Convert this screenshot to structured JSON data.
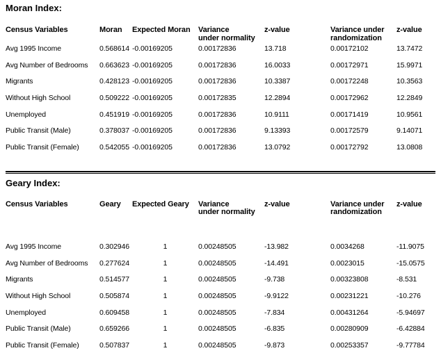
{
  "page": {
    "background_color": "#ffffff",
    "text_color": "#000000"
  },
  "moran": {
    "title": "Moran Index:",
    "headers": {
      "variable": "Census Variables",
      "index": "Moran",
      "expected": "Expected Moran",
      "variance_normality_line1": "Variance",
      "variance_normality_line2": "under normality",
      "z_normality": "z-value",
      "variance_randomization_line1": "Variance under",
      "variance_randomization_line2": "randomization",
      "z_randomization": "z-value"
    },
    "rows": [
      {
        "variable": "Avg 1995 Income",
        "index": "0.568614",
        "expected": "-0.00169205",
        "variance_normality": "0.00172836",
        "z_normality": "13.718",
        "variance_randomization": "0.00172102",
        "z_randomization": "13.7472"
      },
      {
        "variable": "Avg Number of Bedrooms",
        "index": "0.663623",
        "expected": "-0.00169205",
        "variance_normality": "0.00172836",
        "z_normality": "16.0033",
        "variance_randomization": "0.00172971",
        "z_randomization": "15.9971"
      },
      {
        "variable": "Migrants",
        "index": "0.428123",
        "expected": "-0.00169205",
        "variance_normality": "0.00172836",
        "z_normality": "10.3387",
        "variance_randomization": "0.00172248",
        "z_randomization": "10.3563"
      },
      {
        "variable": "Without High School",
        "index": "0.509222",
        "expected": "-0.00169205",
        "variance_normality": "0.00172835",
        "z_normality": "12.2894",
        "variance_randomization": "0.00172962",
        "z_randomization": "12.2849"
      },
      {
        "variable": "Unemployed",
        "index": "0.451919",
        "expected": "-0.00169205",
        "variance_normality": "0.00172836",
        "z_normality": "10.9111",
        "variance_randomization": "0.00171419",
        "z_randomization": "10.9561"
      },
      {
        "variable": "Public Transit (Male)",
        "index": "0.378037",
        "expected": "-0.00169205",
        "variance_normality": "0.00172836",
        "z_normality": "9.13393",
        "variance_randomization": "0.00172579",
        "z_randomization": "9.14071"
      },
      {
        "variable": "Public Transit (Female)",
        "index": "0.542055",
        "expected": "-0.00169205",
        "variance_normality": "0.00172836",
        "z_normality": "13.0792",
        "variance_randomization": "0.00172792",
        "z_randomization": "13.0808"
      }
    ]
  },
  "geary": {
    "title": "Geary Index:",
    "headers": {
      "variable": "Census Variables",
      "index": "Geary",
      "expected": "Expected Geary",
      "variance_normality_line1": "Variance",
      "variance_normality_line2": "under normality",
      "z_normality": "z-value",
      "variance_randomization_line1": "Variance under",
      "variance_randomization_line2": "randomization",
      "z_randomization": "z-value"
    },
    "rows": [
      {
        "variable": "Avg 1995 Income",
        "index": "0.302946",
        "expected": "1",
        "variance_normality": "0.00248505",
        "z_normality": "-13.982",
        "variance_randomization": "0.0034268",
        "z_randomization": "-11.9075"
      },
      {
        "variable": "Avg Number of Bedrooms",
        "index": "0.277624",
        "expected": "1",
        "variance_normality": "0.00248505",
        "z_normality": "-14.491",
        "variance_randomization": "0.0023015",
        "z_randomization": "-15.0575"
      },
      {
        "variable": "Migrants",
        "index": "0.514577",
        "expected": "1",
        "variance_normality": "0.00248505",
        "z_normality": "-9.738",
        "variance_randomization": "0.00323808",
        "z_randomization": "-8.531"
      },
      {
        "variable": "Without High School",
        "index": "0.505874",
        "expected": "1",
        "variance_normality": "0.00248505",
        "z_normality": "-9.9122",
        "variance_randomization": "0.00231221",
        "z_randomization": "-10.276"
      },
      {
        "variable": "Unemployed",
        "index": "0.609458",
        "expected": "1",
        "variance_normality": "0.00248505",
        "z_normality": "-7.834",
        "variance_randomization": "0.00431264",
        "z_randomization": "-5.94697"
      },
      {
        "variable": "Public Transit (Male)",
        "index": "0.659266",
        "expected": "1",
        "variance_normality": "0.00248505",
        "z_normality": "-6.835",
        "variance_randomization": "0.00280909",
        "z_randomization": "-6.42884"
      },
      {
        "variable": "Public Transit (Female)",
        "index": "0.507837",
        "expected": "1",
        "variance_normality": "0.00248505",
        "z_normality": "-9.873",
        "variance_randomization": "0.00253357",
        "z_randomization": "-9.77784"
      }
    ]
  }
}
